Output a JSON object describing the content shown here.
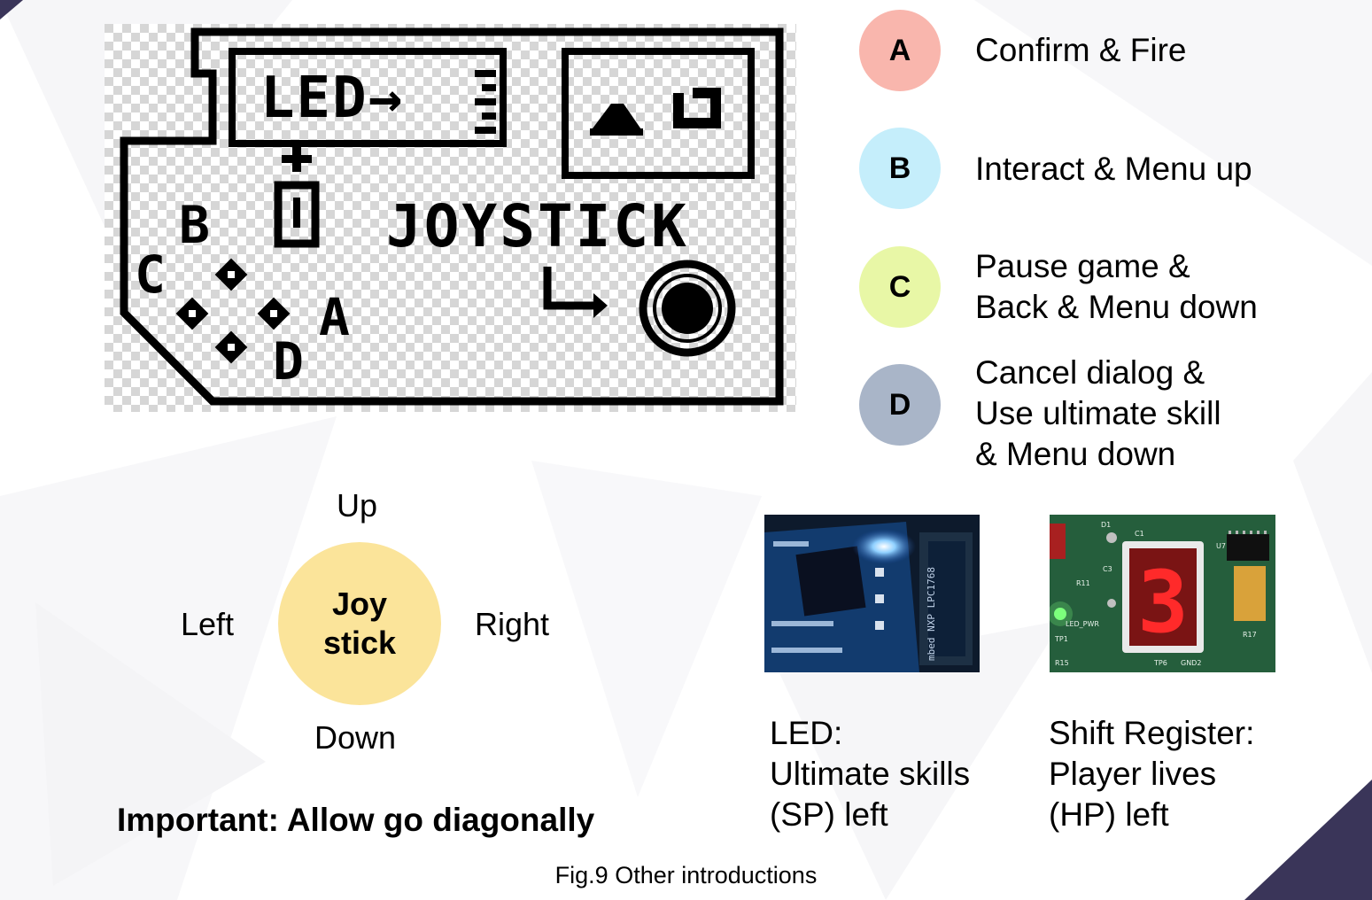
{
  "device": {
    "led_label": "LED→",
    "button_letters": {
      "b": "B",
      "c": "C",
      "a": "A",
      "d": "D"
    },
    "joystick_label": "JOYSTICK"
  },
  "buttons": [
    {
      "letter": "A",
      "lines": [
        "Confirm & Fire"
      ],
      "color": "#f9b6ad"
    },
    {
      "letter": "B",
      "lines": [
        "Interact & Menu up"
      ],
      "color": "#c5eefb"
    },
    {
      "letter": "C",
      "lines": [
        "Pause game &",
        "Back & Menu down"
      ],
      "color": "#e8f7a6"
    },
    {
      "letter": "D",
      "lines": [
        "Cancel dialog &",
        "Use ultimate skill",
        "& Menu down"
      ],
      "color": "#a9b5c8"
    }
  ],
  "joystick": {
    "label_line1": "Joy",
    "label_line2": "stick",
    "up": "Up",
    "down": "Down",
    "left": "Left",
    "right": "Right",
    "color": "#fbe49a"
  },
  "important": "Important: Allow go diagonally",
  "led_photo": {
    "pcb_text": "mbed NXP LPC1768",
    "caption_lines": [
      "LED:",
      "Ultimate skills",
      "(SP) left"
    ]
  },
  "shift_photo": {
    "digit": "3",
    "silk_labels": [
      "U7",
      "R11",
      "LED_PWR",
      "TP1",
      "R15",
      "TP6",
      "GND2",
      "R17",
      "C1",
      "D1",
      "C3"
    ],
    "caption_lines": [
      "Shift Register:",
      "Player lives",
      "(HP) left"
    ]
  },
  "figure_caption": "Fig.9 Other introductions",
  "colors": {
    "corner": "#3a3559",
    "ink": "#000000"
  }
}
